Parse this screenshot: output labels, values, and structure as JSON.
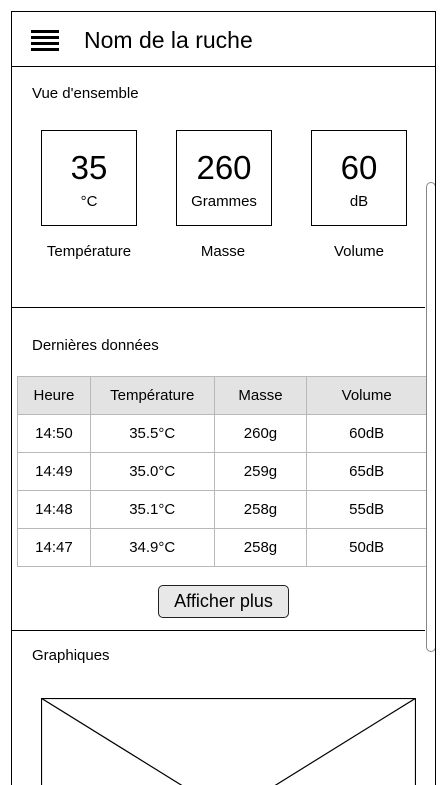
{
  "header": {
    "title": "Nom de la ruche",
    "menu_icon": "hamburger-menu-icon"
  },
  "overview": {
    "title": "Vue d'ensemble",
    "metrics": [
      {
        "value": "35",
        "unit": "°C",
        "label": "Température"
      },
      {
        "value": "260",
        "unit": "Grammes",
        "label": "Masse"
      },
      {
        "value": "60",
        "unit": "dB",
        "label": "Volume"
      }
    ]
  },
  "latest": {
    "title": "Dernières données",
    "columns": [
      "Heure",
      "Température",
      "Masse",
      "Volume"
    ],
    "rows": [
      [
        "14:50",
        "35.5°C",
        "260g",
        "60dB"
      ],
      [
        "14:49",
        "35.0°C",
        "259g",
        "65dB"
      ],
      [
        "14:48",
        "35.1°C",
        "258g",
        "55dB"
      ],
      [
        "14:47",
        "34.9°C",
        "258g",
        "50dB"
      ]
    ],
    "more_button": "Afficher plus"
  },
  "charts": {
    "title": "Graphiques",
    "placeholder_icon": "image-placeholder-icon"
  }
}
